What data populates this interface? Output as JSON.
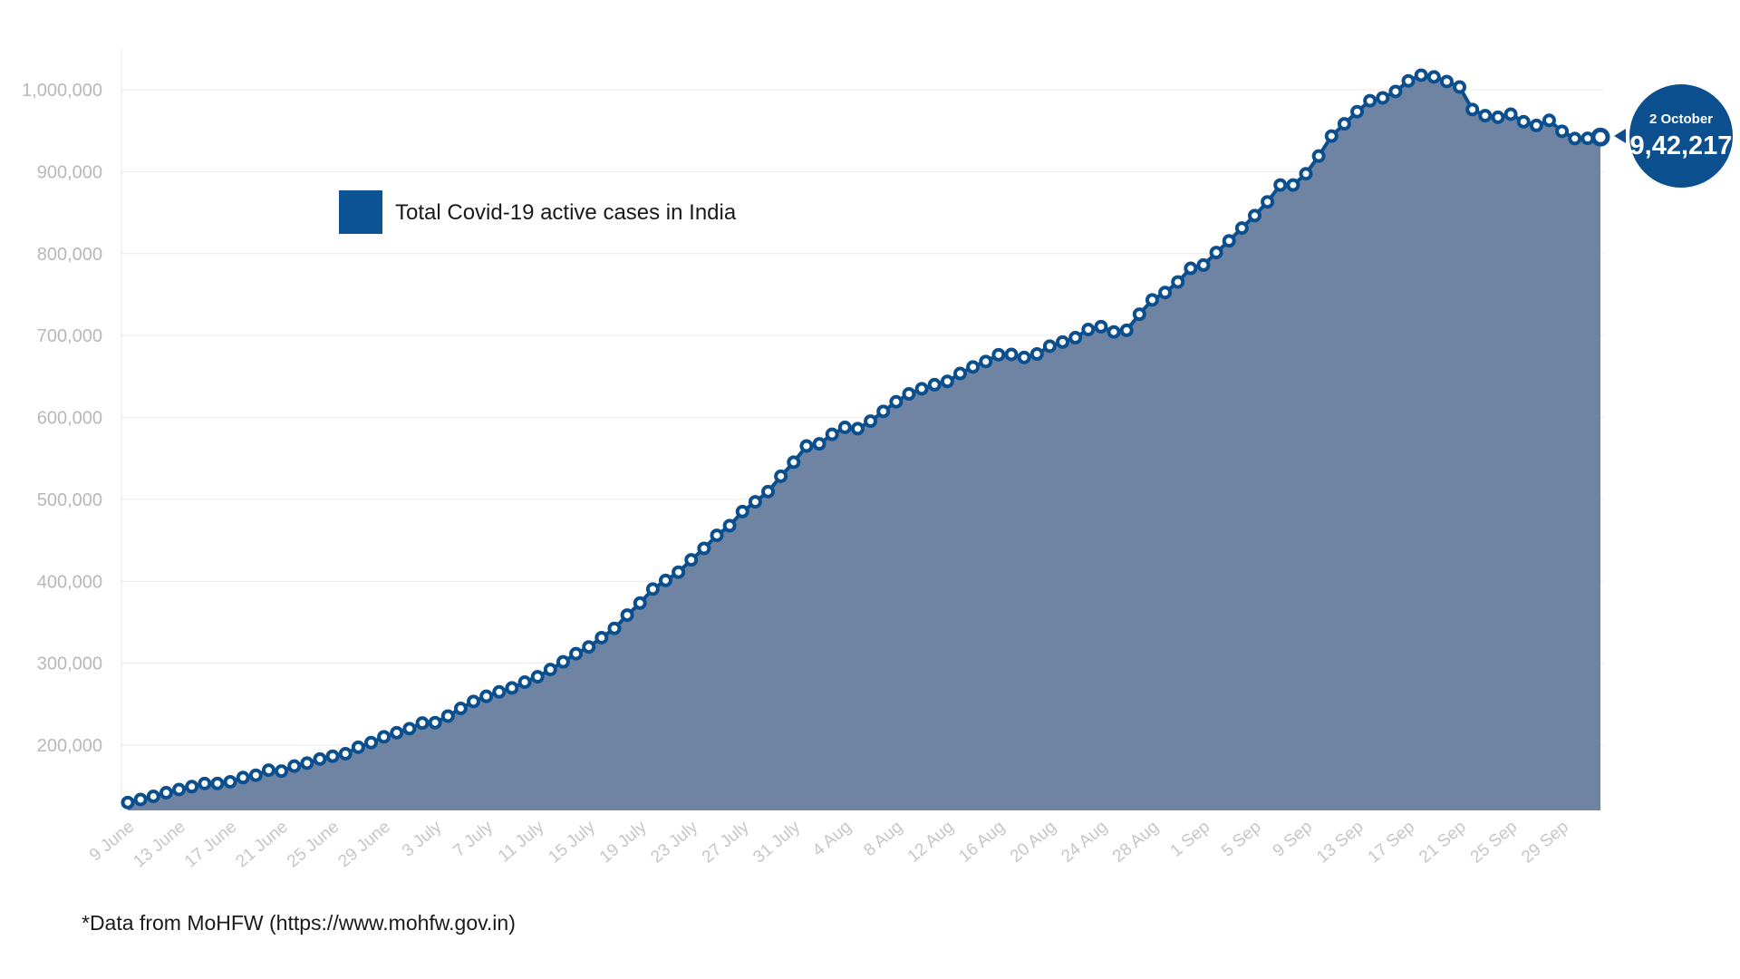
{
  "colors": {
    "area": "#6f84a3",
    "line": "#0b4f8f",
    "marker_fill": "#ffffff",
    "grid": "#e9e9e9",
    "legend_swatch": "#0b5394",
    "callout": "#0b4f8f"
  },
  "legend": {
    "label": "Total Covid-19 active cases in India"
  },
  "callout": {
    "date": "2 October",
    "value": "9,42,217"
  },
  "footnote": "*Data from MoHFW (https://www.mohfw.gov.in)",
  "chart_data": {
    "type": "area",
    "title": "",
    "xlabel": "",
    "ylabel": "",
    "x_range": [
      "9 June",
      "2 October"
    ],
    "ylim": [
      125000,
      1050000
    ],
    "y_ticks": [
      "200,000",
      "300,000",
      "400,000",
      "500,000",
      "600,000",
      "700,000",
      "800,000",
      "900,000",
      "1,000,000"
    ],
    "y_tick_values": [
      200000,
      300000,
      400000,
      500000,
      600000,
      700000,
      800000,
      900000,
      1000000
    ],
    "x_ticks": [
      "9 June",
      "13 June",
      "17 June",
      "21 June",
      "25 June",
      "29 June",
      "3 July",
      "7 July",
      "11 July",
      "15 July",
      "19 July",
      "23 July",
      "27 July",
      "31 July",
      "4 Aug",
      "8 Aug",
      "12 Aug",
      "16 Aug",
      "20 Aug",
      "24 Aug",
      "28 Aug",
      "1 Sep",
      "5 Sep",
      "9 Sep",
      "13 Sep",
      "17 Sep",
      "21 Sep",
      "25 Sep",
      "29 Sep"
    ],
    "grid": "horizontal",
    "legend_position": "top-left",
    "series": [
      {
        "name": "Total Covid-19 active cases in India",
        "values": [
          129917,
          133632,
          137448,
          141842,
          145779,
          149348,
          153106,
          153178,
          155227,
          160384,
          163248,
          169451,
          168269,
          174387,
          178014,
          183022,
          186514,
          189463,
          197387,
          203051,
          210120,
          215125,
          220114,
          226947,
          227439,
          235433,
          244814,
          253287,
          259557,
          264944,
          269789,
          276882,
          283407,
          292258,
          301609,
          311565,
          319840,
          331146,
          342473,
          358692,
          373379,
          390459,
          401029,
          411133,
          426167,
          440135,
          456071,
          467882,
          485114,
          496988,
          509447,
          528242,
          545318,
          565103,
          567730,
          579357,
          587825,
          586244,
          595501,
          607384,
          619088,
          628747,
          634945,
          639929,
          643948,
          653622,
          661595,
          668220,
          676514,
          676900,
          673166,
          677444,
          687012,
          692028,
          697330,
          707267,
          710771,
          704348,
          706348,
          725991,
          743465,
          752424,
          765302,
          781975,
          785996,
          801282,
          815538,
          831124,
          846395,
          863133,
          883697,
          883697,
          897394,
          919018,
          943480,
          958316,
          973175,
          986598,
          990061,
          997833,
          1010824,
          1017754,
          1015681,
          1009976,
          1003299,
          975861,
          968377,
          966382,
          970116,
          960969,
          956402,
          962640,
          949251,
          940441,
          940705,
          942217
        ]
      }
    ]
  }
}
